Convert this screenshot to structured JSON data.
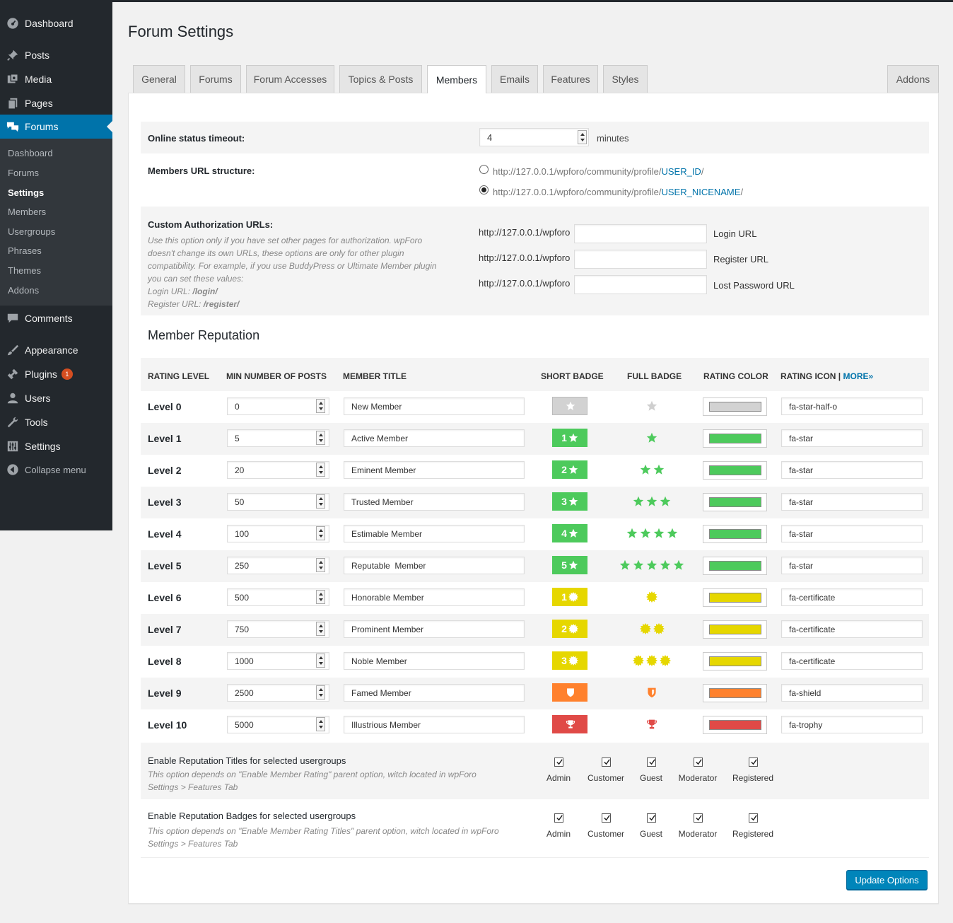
{
  "sidebar": {
    "menu": [
      {
        "label": "Dashboard",
        "icon": "dashboard-icon"
      },
      {
        "label": "Posts",
        "icon": "pin-icon"
      },
      {
        "label": "Media",
        "icon": "media-icon"
      },
      {
        "label": "Pages",
        "icon": "pages-icon"
      },
      {
        "label": "Forums",
        "icon": "forums-icon"
      },
      {
        "label": "Comments",
        "icon": "comment-icon"
      },
      {
        "label": "Appearance",
        "icon": "brush-icon"
      },
      {
        "label": "Plugins",
        "icon": "plugin-icon",
        "badge": "1"
      },
      {
        "label": "Users",
        "icon": "user-icon"
      },
      {
        "label": "Tools",
        "icon": "wrench-icon"
      },
      {
        "label": "Settings",
        "icon": "settings-icon"
      },
      {
        "label": "Collapse menu",
        "icon": "collapse-icon"
      }
    ],
    "submenu": [
      "Dashboard",
      "Forums",
      "Settings",
      "Members",
      "Usergroups",
      "Phrases",
      "Themes",
      "Addons"
    ]
  },
  "page": {
    "title": "Forum Settings"
  },
  "tabs": [
    "General",
    "Forums",
    "Forum Accesses",
    "Topics & Posts",
    "Members",
    "Emails",
    "Features",
    "Styles",
    "Addons"
  ],
  "online_status": {
    "label": "Online status timeout:",
    "value": "4",
    "unit": "minutes"
  },
  "url_structure": {
    "label": "Members URL structure:",
    "options": [
      {
        "base": "http://127.0.0.1/wpforo/community/profile/",
        "token": "USER_ID",
        "suffix": "/",
        "selected": false
      },
      {
        "base": "http://127.0.0.1/wpforo/community/profile/",
        "token": "USER_NICENAME",
        "suffix": "/",
        "selected": true
      }
    ]
  },
  "auth_urls": {
    "label": "Custom Authorization URLs:",
    "desc_lines": [
      "Use this option only if you have set other pages for authorization. wpForo",
      "doesn't change its own URLs, these options are only for other plugin",
      "compatibility. For example, if you use BuddyPress or Ultimate Member plugin",
      "you can set these values:"
    ],
    "login_example_label": "Login URL:",
    "login_example_value": "/login/",
    "register_example_label": "Register URL:",
    "register_example_value": "/register/",
    "prefix": "http://127.0.0.1/wpforo",
    "fields": [
      {
        "label": "Login URL",
        "value": ""
      },
      {
        "label": "Register URL",
        "value": ""
      },
      {
        "label": "Lost Password URL",
        "value": ""
      }
    ]
  },
  "reputation": {
    "title": "Member Reputation",
    "headers": {
      "level": "RATING LEVEL",
      "posts": "MIN NUMBER OF POSTS",
      "title": "MEMBER TITLE",
      "short": "SHORT BADGE",
      "full": "FULL BADGE",
      "color": "RATING COLOR",
      "icon": "RATING ICON |",
      "more": "MORE»"
    },
    "levels": [
      {
        "label": "Level 0",
        "posts": "0",
        "title": "New Member",
        "color": "#d2d2d2",
        "icon": "fa-star-half-o",
        "num": "",
        "glyph": "star-half",
        "count": 1
      },
      {
        "label": "Level 1",
        "posts": "5",
        "title": "Active Member",
        "color": "#4dca5c",
        "icon": "fa-star",
        "num": "1",
        "glyph": "star",
        "count": 1
      },
      {
        "label": "Level 2",
        "posts": "20",
        "title": "Eminent Member",
        "color": "#4dca5c",
        "icon": "fa-star",
        "num": "2",
        "glyph": "star",
        "count": 2
      },
      {
        "label": "Level 3",
        "posts": "50",
        "title": "Trusted Member",
        "color": "#4dca5c",
        "icon": "fa-star",
        "num": "3",
        "glyph": "star",
        "count": 3
      },
      {
        "label": "Level 4",
        "posts": "100",
        "title": "Estimable Member",
        "color": "#4dca5c",
        "icon": "fa-star",
        "num": "4",
        "glyph": "star",
        "count": 4
      },
      {
        "label": "Level 5",
        "posts": "250",
        "title": "Reputable  Member",
        "color": "#4dca5c",
        "icon": "fa-star",
        "num": "5",
        "glyph": "star",
        "count": 5
      },
      {
        "label": "Level 6",
        "posts": "500",
        "title": "Honorable Member",
        "color": "#e6d700",
        "icon": "fa-certificate",
        "num": "1",
        "glyph": "cert",
        "count": 1
      },
      {
        "label": "Level 7",
        "posts": "750",
        "title": "Prominent Member",
        "color": "#e6d700",
        "icon": "fa-certificate",
        "num": "2",
        "glyph": "cert",
        "count": 2
      },
      {
        "label": "Level 8",
        "posts": "1000",
        "title": "Noble Member",
        "color": "#e6d700",
        "icon": "fa-certificate",
        "num": "3",
        "glyph": "cert",
        "count": 3
      },
      {
        "label": "Level 9",
        "posts": "2500",
        "title": "Famed Member",
        "color": "#ff812d",
        "icon": "fa-shield",
        "num": "",
        "glyph": "shield",
        "count": 1
      },
      {
        "label": "Level 10",
        "posts": "5000",
        "title": "Illustrious Member",
        "color": "#e04a47",
        "icon": "fa-trophy",
        "num": "",
        "glyph": "trophy",
        "count": 1
      }
    ]
  },
  "usergroup_options": [
    {
      "label": "Enable Reputation Titles for selected usergroups",
      "desc_lines": [
        "This option depends on \"Enable Member Rating\" parent option, witch located in wpForo",
        "Settings > Features Tab"
      ],
      "groups": [
        "Admin",
        "Customer",
        "Guest",
        "Moderator",
        "Registered"
      ]
    },
    {
      "label": "Enable Reputation Badges for selected usergroups",
      "desc_lines": [
        "This option depends on \"Enable Member Rating Titles\" parent option, witch located in wpForo",
        "Settings > Features Tab"
      ],
      "groups": [
        "Admin",
        "Customer",
        "Guest",
        "Moderator",
        "Registered"
      ]
    }
  ],
  "actions": {
    "update_label": "Update Options"
  },
  "colors": {
    "accent": "#0073aa",
    "sidebar": "#23282d",
    "button": "#0085ba"
  }
}
